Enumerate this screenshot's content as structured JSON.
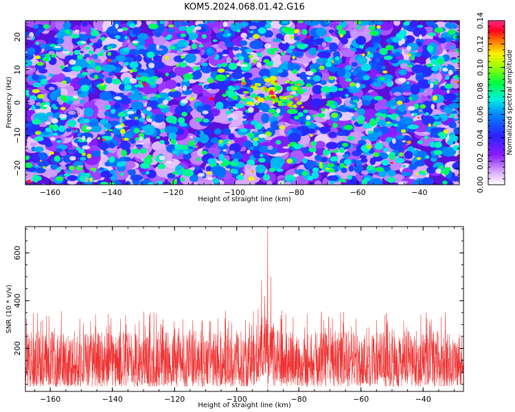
{
  "title": "KOM5.2024.068.01.42.G16",
  "colors": {
    "snr_line": "#ee3333",
    "frame": "#000000"
  },
  "chart_data": [
    {
      "type": "heatmap",
      "panel": "top",
      "xlabel": "Height of straight line (km)",
      "ylabel": "Frequency (Hz)",
      "xlim": [
        -168,
        -27
      ],
      "ylim": [
        -25,
        25
      ],
      "xticks": [
        -160,
        -140,
        -120,
        -100,
        -80,
        -60,
        -40
      ],
      "yticks": [
        -20,
        -10,
        0,
        10,
        20
      ],
      "colorbar": {
        "label": "Normalized spectral amplitude",
        "range": [
          0,
          0.14
        ],
        "ticks": [
          "0.00",
          "0.02",
          "0.04",
          "0.06",
          "0.08",
          "0.10",
          "0.12",
          "0.14"
        ],
        "colormap": "rainbow (white-purple-blue-cyan-green-yellow-red-magenta)"
      },
      "peak": {
        "x": -88,
        "y": 3,
        "value": 0.14
      },
      "note": "dense noise-like speckle; highest concentration near x=-90..-80 km, y=0..5 Hz"
    },
    {
      "type": "line",
      "panel": "bottom",
      "xlabel": "Height of straight line (km)",
      "ylabel": "SNR (10 * v/v)",
      "xlim": [
        -168,
        -27
      ],
      "ylim": [
        20,
        710
      ],
      "xticks": [
        -160,
        -140,
        -120,
        -100,
        -80,
        -60,
        -40
      ],
      "yticks": [
        200,
        400,
        600
      ],
      "baseline": {
        "min": 40,
        "max": 300
      },
      "peak": {
        "x": -90,
        "y": 700
      },
      "secondary_peaks": [
        {
          "x": -92,
          "y": 485
        },
        {
          "x": -89,
          "y": 500
        },
        {
          "x": -91,
          "y": 420
        }
      ],
      "series_color": "#ee3333"
    }
  ]
}
